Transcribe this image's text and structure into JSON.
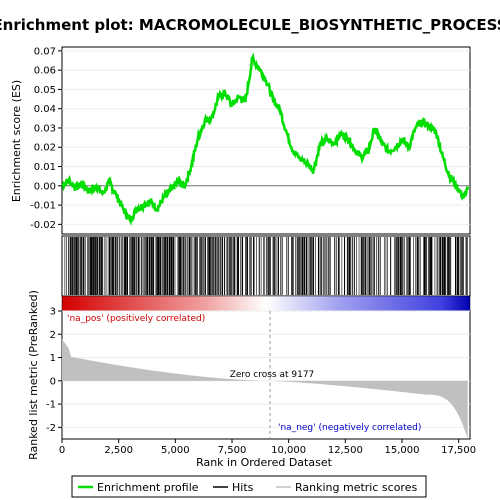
{
  "chart_data": {
    "type": "line",
    "title": "Enrichment plot: MACROMOLECULE_BIOSYNTHETIC_PROCESS",
    "xlabel": "Rank in Ordered Dataset",
    "ylabel_top": "Enrichment score (ES)",
    "ylabel_bottom": "Ranked list metric (PreRanked)",
    "x_ticks": [
      0,
      2500,
      5000,
      7500,
      10000,
      12500,
      15000,
      17500
    ],
    "x_tick_labels": [
      "0",
      "2,500",
      "5,000",
      "7,500",
      "10,000",
      "12,500",
      "15,000",
      "17,500"
    ],
    "xlim": [
      0,
      18000
    ],
    "es_ylim": [
      -0.025,
      0.072
    ],
    "es_y_ticks": [
      -0.02,
      -0.01,
      0.0,
      0.01,
      0.02,
      0.03,
      0.04,
      0.05,
      0.06,
      0.07
    ],
    "es_y_tick_labels": [
      "-0.02",
      "-0.01",
      "0.00",
      "0.01",
      "0.02",
      "0.03",
      "0.04",
      "0.05",
      "0.06",
      "0.07"
    ],
    "metric_ylim": [
      -2.5,
      3.0
    ],
    "metric_y_ticks": [
      -2,
      -1,
      0,
      1,
      2,
      3
    ],
    "metric_y_tick_labels": [
      "-2",
      "-1",
      "0",
      "1",
      "2",
      "3"
    ],
    "es_profile": {
      "x": [
        0,
        300,
        600,
        900,
        1200,
        1500,
        1800,
        2100,
        2400,
        2700,
        3000,
        3300,
        3600,
        3900,
        4200,
        4500,
        4800,
        5100,
        5400,
        5700,
        6000,
        6300,
        6600,
        6900,
        7200,
        7500,
        7800,
        8100,
        8400,
        8700,
        9000,
        9300,
        9600,
        9900,
        10200,
        10500,
        10800,
        11100,
        11400,
        11700,
        12000,
        12300,
        12600,
        12900,
        13200,
        13500,
        13800,
        14100,
        14400,
        14700,
        15000,
        15300,
        15600,
        15900,
        16200,
        16500,
        16800,
        17100,
        17400,
        17700,
        17900
      ],
      "y": [
        0.0,
        0.003,
        -0.001,
        0.001,
        -0.003,
        0.0,
        -0.004,
        0.002,
        -0.005,
        -0.012,
        -0.018,
        -0.012,
        -0.01,
        -0.008,
        -0.012,
        -0.006,
        -0.002,
        0.002,
        0.0,
        0.01,
        0.025,
        0.034,
        0.035,
        0.046,
        0.048,
        0.042,
        0.046,
        0.044,
        0.066,
        0.061,
        0.055,
        0.045,
        0.04,
        0.028,
        0.018,
        0.014,
        0.012,
        0.008,
        0.022,
        0.024,
        0.022,
        0.027,
        0.025,
        0.019,
        0.015,
        0.018,
        0.03,
        0.022,
        0.018,
        0.02,
        0.024,
        0.02,
        0.03,
        0.033,
        0.031,
        0.028,
        0.015,
        0.005,
        0.0,
        -0.006,
        -0.002
      ],
      "color": "#00dd00"
    },
    "zero_cross_label": "Zero cross at 9177",
    "zero_cross_rank": 9177,
    "na_pos_label": "'na_pos' (positively correlated)",
    "na_neg_label": "'na_neg' (negatively correlated)",
    "legend": {
      "enrichment_label": "Enrichment profile",
      "hits_label": "Hits",
      "metric_label": "Ranking metric scores",
      "placement": "bottom"
    },
    "colors": {
      "enrichment": "#00dd00",
      "hits": "#000000",
      "metric": "#c0c0c0",
      "pos": "#dd0000",
      "neg": "#0000cc"
    }
  }
}
